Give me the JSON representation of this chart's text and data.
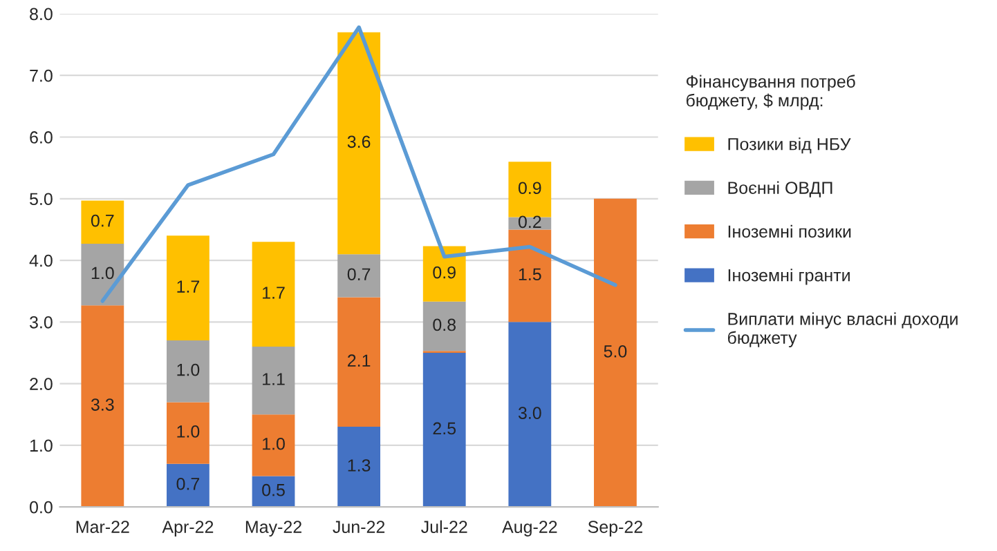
{
  "chart_data": {
    "type": "bar",
    "stacked": true,
    "legend_title": "Фінансування потреб бюджету, $ млрд:",
    "categories": [
      "Mar-22",
      "Apr-22",
      "May-22",
      "Jun-22",
      "Jul-22",
      "Aug-22",
      "Sep-22"
    ],
    "series": [
      {
        "name": "Іноземні гранти",
        "color": "#4472c4",
        "values": [
          null,
          0.7,
          0.5,
          1.3,
          2.5,
          3.0,
          null
        ],
        "value_labels": [
          null,
          "0.7",
          "0.5",
          "1.3",
          "2.5",
          "3.0",
          null
        ]
      },
      {
        "name": "Іноземні позики",
        "color": "#ed7d31",
        "values": [
          3.27,
          1.0,
          1.0,
          2.1,
          0.03,
          1.5,
          5.0
        ],
        "value_labels": [
          "3.3",
          "1.0",
          "1.0",
          "2.1",
          null,
          "1.5",
          "5.0"
        ]
      },
      {
        "name": "Воєнні ОВДП",
        "color": "#a5a5a5",
        "values": [
          1.0,
          1.0,
          1.1,
          0.7,
          0.8,
          0.2,
          null
        ],
        "value_labels": [
          "1.0",
          "1.0",
          "1.1",
          "0.7",
          "0.8",
          "0.2",
          null
        ]
      },
      {
        "name": "Позики від НБУ",
        "color": "#ffc000",
        "values": [
          0.7,
          1.7,
          1.7,
          3.6,
          0.9,
          0.9,
          null
        ],
        "value_labels": [
          "0.7",
          "1.7",
          "1.7",
          "3.6",
          "0.9",
          "0.9",
          null
        ]
      },
      {
        "name": "Виплати мінус власні доходи бюджету",
        "type": "line",
        "color": "#5b9bd5",
        "values": [
          3.34,
          5.22,
          5.72,
          7.78,
          4.06,
          4.22,
          3.6
        ]
      }
    ],
    "ylim": [
      0,
      8
    ],
    "yticks": [
      {
        "value": 0,
        "label": "0.0"
      },
      {
        "value": 1,
        "label": "1.0"
      },
      {
        "value": 2,
        "label": "2.0"
      },
      {
        "value": 3,
        "label": "3.0"
      },
      {
        "value": 4,
        "label": "4.0"
      },
      {
        "value": 5,
        "label": "5.0"
      },
      {
        "value": 6,
        "label": "6.0"
      },
      {
        "value": 7,
        "label": "7.0"
      },
      {
        "value": 8,
        "label": "8.0"
      }
    ],
    "grid": "y",
    "legend": "right",
    "marker": "none",
    "line_style": "solid"
  }
}
